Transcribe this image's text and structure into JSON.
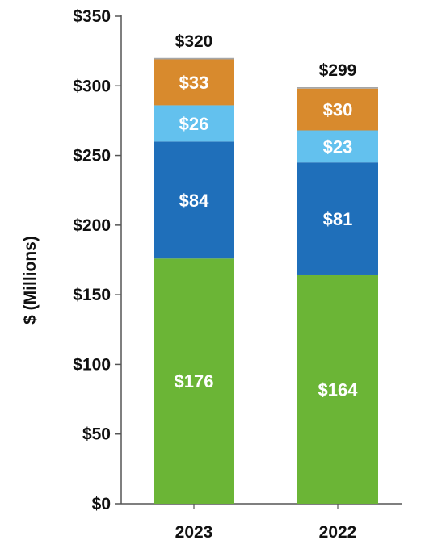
{
  "chart_data": {
    "type": "bar",
    "stacked": true,
    "categories": [
      "2023",
      "2022"
    ],
    "series": [
      {
        "values": [
          176,
          164
        ],
        "color": "#6BB536"
      },
      {
        "values": [
          84,
          81
        ],
        "color": "#1F6FBA"
      },
      {
        "values": [
          26,
          23
        ],
        "color": "#63C1EE"
      },
      {
        "values": [
          33,
          30
        ],
        "color": "#D88A2D"
      },
      {
        "values": [
          1,
          1
        ],
        "color": "#A6A6A6"
      }
    ],
    "stack_labels": [
      [
        "$176",
        "$84",
        "$26",
        "$33",
        ""
      ],
      [
        "$164",
        "$81",
        "$23",
        "$30",
        ""
      ]
    ],
    "totals": [
      320,
      299
    ],
    "total_labels": [
      "$320",
      "$299"
    ],
    "ylabel": "$ (Millions)",
    "ylim": [
      0,
      350
    ],
    "yticks": [
      0,
      50,
      100,
      150,
      200,
      250,
      300,
      350
    ],
    "ytick_labels": [
      "$0",
      "$50",
      "$100",
      "$150",
      "$200",
      "$250",
      "$300",
      "$350"
    ],
    "grid": false,
    "legend": "none"
  }
}
